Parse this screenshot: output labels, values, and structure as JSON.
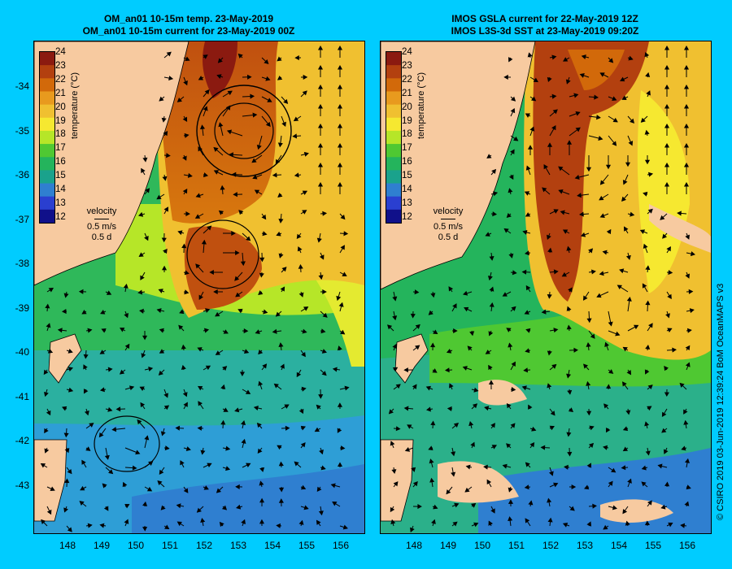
{
  "left_panel": {
    "title_line1": "OM_an01 10-15m temp. 23-May-2019",
    "title_line2": "OM_an01 10-15m current for 23-May-2019 00Z"
  },
  "right_panel": {
    "title_line1": "IMOS GSLA current for 22-May-2019 12Z",
    "title_line2": "IMOS L3S-3d SST at 23-May-2019 09:20Z"
  },
  "colorbar": {
    "ticks": [
      "24",
      "23",
      "22",
      "21",
      "20",
      "19",
      "18",
      "17",
      "16",
      "15",
      "14",
      "13",
      "12"
    ],
    "label": "temperature (°C)",
    "colors": [
      "#8b1a10",
      "#b3400f",
      "#d2690a",
      "#e89a1e",
      "#f0c030",
      "#f6e830",
      "#b6e628",
      "#4fc832",
      "#24b45c",
      "#1aa28c",
      "#2f7fd0",
      "#2a3fd0",
      "#10108a"
    ]
  },
  "velocity_legend": {
    "title": "velocity",
    "speed": "0.5 m/s",
    "duration": "0.5 d"
  },
  "axes": {
    "lat_labels": [
      "-34",
      "-35",
      "-36",
      "-37",
      "-38",
      "-39",
      "-40",
      "-41",
      "-42",
      "-43"
    ],
    "lon_labels": [
      "148",
      "149",
      "150",
      "151",
      "152",
      "153",
      "154",
      "155",
      "156"
    ]
  },
  "credit": "© CSIRO 2019   03-Jun-2019 12:39:24 BoM OceanMAPS v3",
  "colors": {
    "background": "#00ccff",
    "land": "#f7caa0"
  }
}
